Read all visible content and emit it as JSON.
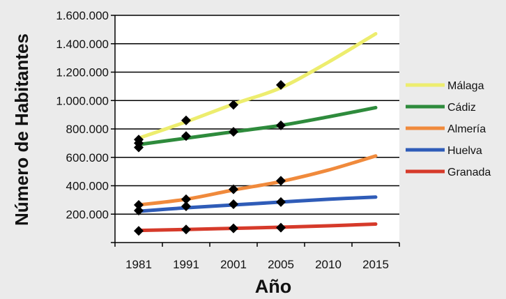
{
  "chart_data": {
    "type": "line",
    "xlabel": "Año",
    "ylabel": "Número de Habitantes",
    "x": [
      "1981",
      "1991",
      "2001",
      "2005",
      "2010",
      "2015"
    ],
    "ylim": [
      0,
      1600000
    ],
    "yticks": [
      "1.600.000",
      "1.400.000",
      "1.200.000",
      "1.000.000",
      "800.000",
      "600.000",
      "400.000",
      "200.000"
    ],
    "grid": true,
    "legend_position": "right",
    "series": [
      {
        "name": "Málaga",
        "color": "#eded6e",
        "trend": [
          735000,
          850000,
          975000,
          1090000,
          1270000,
          1470000
        ],
        "observed": [
          {
            "x": "1981",
            "y": 725000
          },
          {
            "x": "1991",
            "y": 860000
          },
          {
            "x": "2001",
            "y": 970000
          },
          {
            "x": "2005",
            "y": 1110000
          }
        ]
      },
      {
        "name": "Cádiz",
        "color": "#2e8b3c",
        "trend": [
          690000,
          735000,
          780000,
          825000,
          885000,
          950000
        ],
        "observed": [
          {
            "x": "1981",
            "y": 670000
          },
          {
            "x": "1981",
            "y": 700000
          },
          {
            "x": "1991",
            "y": 750000
          },
          {
            "x": "2001",
            "y": 780000
          },
          {
            "x": "2005",
            "y": 825000
          }
        ]
      },
      {
        "name": "Almería",
        "color": "#f08a3c",
        "trend": [
          265000,
          305000,
          370000,
          430000,
          510000,
          610000
        ],
        "observed": [
          {
            "x": "1981",
            "y": 265000
          },
          {
            "x": "1991",
            "y": 305000
          },
          {
            "x": "2001",
            "y": 375000
          },
          {
            "x": "2005",
            "y": 435000
          }
        ]
      },
      {
        "name": "Huelva",
        "color": "#2f5cb8",
        "trend": [
          220000,
          245000,
          265000,
          285000,
          305000,
          320000
        ],
        "observed": [
          {
            "x": "1981",
            "y": 225000
          },
          {
            "x": "1991",
            "y": 255000
          },
          {
            "x": "2001",
            "y": 270000
          },
          {
            "x": "2005",
            "y": 285000
          }
        ]
      },
      {
        "name": "Granada",
        "color": "#d63a2a",
        "trend": [
          85000,
          92000,
          100000,
          108000,
          118000,
          130000
        ],
        "observed": [
          {
            "x": "1981",
            "y": 82000
          },
          {
            "x": "1991",
            "y": 92000
          },
          {
            "x": "2001",
            "y": 100000
          },
          {
            "x": "2005",
            "y": 105000
          }
        ]
      }
    ]
  }
}
